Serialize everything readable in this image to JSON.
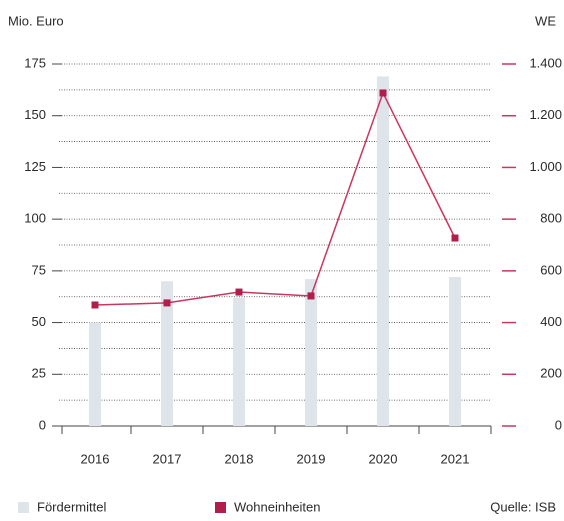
{
  "chart_data": {
    "type": "bar_line",
    "y_label": "Mio. Euro",
    "y2_label": "WE",
    "source": "Quelle: ISB",
    "categories": [
      "2016",
      "2017",
      "2018",
      "2019",
      "2020",
      "2021"
    ],
    "series": [
      {
        "name": "Fördermittel",
        "color": "#dfe3ea",
        "type": "bar",
        "values": [
          50,
          70,
          62,
          71,
          169,
          72
        ]
      },
      {
        "name": "Wohneinheiten",
        "color": "#c8375e",
        "marker_color": "#b01e4b",
        "type": "line",
        "axis": "y2",
        "values": [
          468,
          476,
          518,
          503,
          1288,
          727
        ]
      }
    ],
    "ylim": [
      0,
      175
    ],
    "yticks": [
      0,
      25,
      50,
      75,
      100,
      125,
      150,
      175
    ],
    "yminorticks": [
      12.5,
      37.5,
      62.5,
      87.5,
      112.5,
      137.5,
      162.5
    ],
    "y2lim": [
      0,
      1400
    ],
    "y2ticks": [
      0,
      200,
      400,
      600,
      800,
      {
        "value": 1000,
        "label": "1.000"
      },
      {
        "value": 1200,
        "label": "1.200"
      },
      {
        "value": 1400,
        "label": "1.400"
      }
    ],
    "grid": true
  }
}
